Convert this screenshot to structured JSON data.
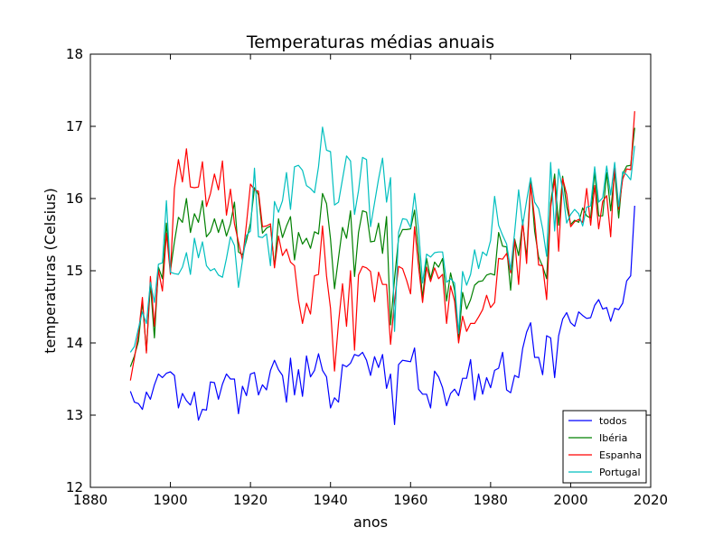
{
  "chart_data": {
    "type": "line",
    "title": "Temperaturas médias anuais",
    "xlabel": "anos",
    "ylabel": "temperaturas (Celsius)",
    "xlim": [
      1880,
      2020
    ],
    "ylim": [
      12,
      18
    ],
    "xticks": [
      1880,
      1900,
      1920,
      1940,
      1960,
      1980,
      2000,
      2020
    ],
    "yticks": [
      12,
      13,
      14,
      15,
      16,
      17,
      18
    ],
    "grid": false,
    "legend_position": "bottom-right",
    "x_start": 1890,
    "x_end": 2016,
    "series": [
      {
        "name": "todos",
        "color": "#0000ff",
        "values": [
          13.33,
          13.18,
          13.16,
          13.08,
          13.32,
          13.22,
          13.42,
          13.57,
          13.52,
          13.58,
          13.6,
          13.55,
          13.1,
          13.3,
          13.2,
          13.14,
          13.32,
          12.93,
          13.08,
          13.07,
          13.46,
          13.45,
          13.22,
          13.43,
          13.57,
          13.5,
          13.5,
          13.02,
          13.4,
          13.27,
          13.57,
          13.59,
          13.28,
          13.42,
          13.35,
          13.62,
          13.76,
          13.63,
          13.55,
          13.18,
          13.79,
          13.28,
          13.63,
          13.26,
          13.82,
          13.53,
          13.62,
          13.85,
          13.62,
          13.53,
          13.1,
          13.24,
          13.18,
          13.7,
          13.67,
          13.72,
          13.84,
          13.82,
          13.87,
          13.76,
          13.55,
          13.81,
          13.66,
          13.84,
          13.37,
          13.57,
          12.87,
          13.7,
          13.76,
          13.75,
          13.74,
          13.93,
          13.36,
          13.29,
          13.29,
          13.1,
          13.61,
          13.53,
          13.38,
          13.13,
          13.3,
          13.36,
          13.27,
          13.51,
          13.51,
          13.77,
          13.21,
          13.57,
          13.29,
          13.52,
          13.38,
          13.62,
          13.65,
          13.87,
          13.35,
          13.31,
          13.55,
          13.52,
          13.92,
          14.15,
          14.28,
          13.8,
          13.8,
          13.56,
          14.1,
          14.07,
          13.52,
          14.1,
          14.33,
          14.42,
          14.28,
          14.23,
          14.43,
          14.38,
          14.34,
          14.35,
          14.52,
          14.6,
          14.47,
          14.49,
          14.3,
          14.48,
          14.46,
          14.55,
          14.86,
          14.93,
          15.9
        ]
      },
      {
        "name": "Ibéria",
        "color": "#008000",
        "values": [
          13.67,
          13.82,
          14.02,
          14.57,
          13.89,
          14.82,
          14.07,
          15.05,
          14.89,
          15.66,
          15.0,
          15.4,
          15.74,
          15.67,
          16.0,
          15.53,
          15.79,
          15.67,
          15.97,
          15.47,
          15.54,
          15.72,
          15.53,
          15.71,
          15.48,
          15.65,
          15.95,
          15.26,
          15.22,
          15.42,
          15.66,
          16.15,
          16.05,
          15.52,
          15.59,
          15.62,
          15.05,
          15.72,
          15.46,
          15.62,
          15.75,
          15.15,
          15.53,
          15.37,
          15.45,
          15.31,
          15.54,
          15.51,
          16.07,
          15.93,
          15.44,
          14.75,
          15.18,
          15.6,
          15.45,
          15.83,
          14.92,
          15.53,
          15.83,
          15.81,
          15.4,
          15.41,
          15.66,
          15.24,
          15.75,
          14.25,
          14.89,
          15.45,
          15.57,
          15.57,
          15.58,
          15.84,
          15.26,
          14.62,
          15.17,
          14.89,
          15.12,
          15.05,
          15.17,
          14.58,
          14.97,
          14.73,
          14.04,
          14.7,
          14.47,
          14.6,
          14.8,
          14.85,
          14.86,
          14.94,
          14.96,
          14.94,
          15.53,
          15.34,
          15.33,
          14.73,
          15.44,
          15.21,
          15.67,
          15.18,
          16.25,
          15.55,
          15.19,
          15.06,
          14.89,
          15.94,
          16.34,
          15.63,
          16.31,
          15.89,
          15.64,
          15.7,
          15.67,
          15.87,
          15.76,
          15.73,
          16.38,
          15.76,
          15.76,
          16.36,
          15.83,
          16.37,
          15.73,
          16.34,
          16.45,
          16.46,
          16.98
        ]
      },
      {
        "name": "Espanha",
        "color": "#ff0000",
        "values": [
          13.48,
          13.79,
          14.12,
          14.63,
          13.86,
          14.92,
          14.23,
          15.01,
          14.72,
          15.52,
          14.95,
          16.14,
          16.54,
          16.23,
          16.69,
          16.16,
          16.15,
          16.16,
          16.51,
          15.89,
          16.07,
          16.34,
          16.12,
          16.52,
          15.77,
          16.13,
          15.65,
          15.4,
          15.15,
          15.65,
          16.2,
          16.12,
          16.1,
          15.61,
          15.62,
          15.65,
          15.04,
          15.48,
          15.21,
          15.3,
          15.12,
          15.07,
          14.59,
          14.27,
          14.55,
          14.4,
          14.93,
          14.95,
          15.62,
          14.93,
          14.48,
          13.61,
          14.28,
          14.82,
          14.23,
          15.0,
          13.9,
          14.94,
          15.06,
          15.04,
          14.99,
          14.57,
          14.98,
          14.81,
          14.81,
          13.98,
          14.58,
          15.06,
          15.03,
          14.87,
          14.68,
          15.61,
          15.06,
          14.56,
          15.05,
          14.85,
          15.04,
          14.89,
          14.95,
          14.27,
          14.79,
          14.58,
          14.0,
          14.37,
          14.16,
          14.27,
          14.27,
          14.36,
          14.46,
          14.66,
          14.49,
          14.56,
          15.17,
          15.16,
          15.24,
          14.97,
          15.43,
          14.81,
          15.7,
          15.1,
          16.2,
          15.72,
          15.08,
          15.07,
          14.6,
          15.88,
          16.27,
          15.27,
          16.28,
          16.06,
          15.61,
          15.68,
          15.71,
          15.67,
          16.14,
          15.63,
          16.18,
          15.58,
          15.96,
          16.04,
          15.47,
          16.46,
          15.85,
          16.27,
          16.41,
          16.4,
          17.21
        ]
      },
      {
        "name": "Portugal",
        "color": "#00bfbf",
        "values": [
          13.87,
          13.95,
          14.2,
          14.43,
          14.27,
          14.84,
          14.56,
          15.09,
          15.11,
          15.97,
          14.98,
          14.96,
          14.95,
          15.05,
          15.25,
          14.95,
          15.45,
          15.18,
          15.4,
          15.07,
          15.0,
          15.03,
          14.94,
          14.91,
          15.17,
          15.47,
          15.35,
          14.77,
          15.14,
          15.49,
          15.55,
          16.42,
          15.47,
          15.46,
          15.51,
          15.07,
          15.96,
          15.81,
          15.97,
          16.36,
          15.85,
          16.44,
          16.46,
          16.39,
          16.18,
          16.14,
          16.08,
          16.44,
          16.99,
          16.67,
          16.65,
          15.91,
          15.95,
          16.27,
          16.59,
          16.52,
          15.78,
          16.11,
          16.57,
          16.54,
          15.61,
          15.94,
          16.27,
          16.56,
          15.95,
          16.29,
          14.16,
          15.53,
          15.72,
          15.71,
          15.6,
          16.07,
          15.57,
          14.83,
          15.23,
          15.19,
          15.25,
          15.26,
          15.26,
          14.84,
          14.89,
          14.83,
          14.13,
          14.99,
          14.8,
          14.95,
          15.29,
          15.03,
          15.26,
          15.21,
          15.42,
          16.03,
          15.63,
          15.49,
          15.37,
          15.01,
          15.53,
          16.12,
          15.63,
          15.97,
          16.29,
          15.95,
          15.86,
          15.58,
          15.2,
          16.5,
          15.55,
          16.41,
          16.12,
          15.66,
          15.78,
          15.85,
          15.79,
          15.62,
          15.88,
          15.9,
          16.44,
          15.95,
          16.01,
          16.45,
          16.05,
          16.5,
          15.89,
          16.37,
          16.33,
          16.26,
          16.73
        ]
      }
    ]
  }
}
